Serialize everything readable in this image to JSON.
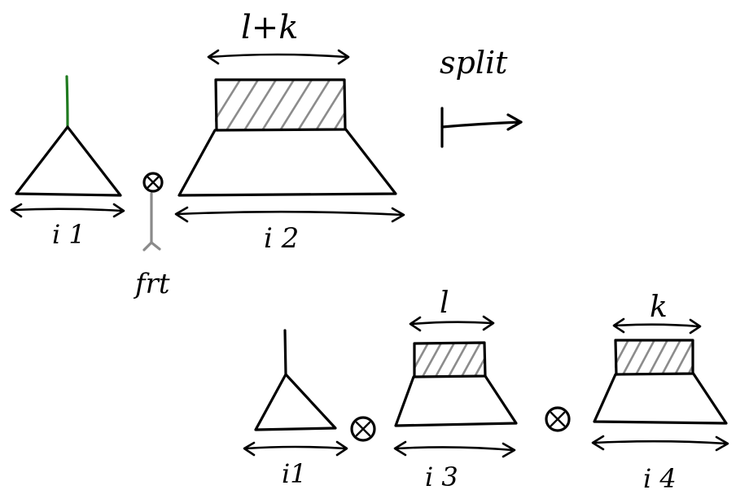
{
  "labels": {
    "top_width": "l+k",
    "split": "split",
    "i1_top": "i 1",
    "i2": "i 2",
    "frt": "frt",
    "l": "l",
    "k": "k",
    "i1_bottom": "i1",
    "i3": "i 3",
    "i4": "i 4"
  },
  "colors": {
    "ink": "#000000",
    "hatch": "#8c8c8c",
    "root_edge": "#1f7a1f",
    "frt_stem": "#8a8a8a"
  },
  "operators": [
    "⊗",
    "⊗",
    "⊗"
  ]
}
